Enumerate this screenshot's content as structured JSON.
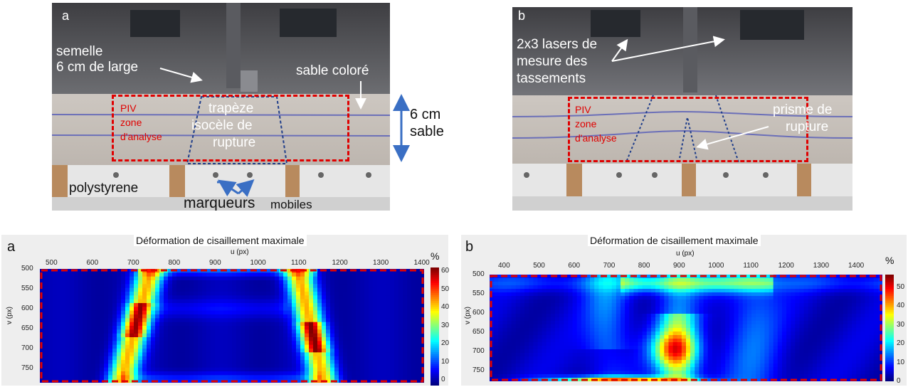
{
  "photo_a": {
    "letter": "a",
    "semelle_line1": "semelle",
    "semelle_line2": "6 cm de large",
    "sable_colore": "sable coloré",
    "piv_line1": "PIV",
    "piv_line2": "zone",
    "piv_line3": "d'analyse",
    "trapeze_line1": "trapèze",
    "trapeze_line2": "isocèle de",
    "trapeze_line3": "rupture",
    "cm_line1": "6 cm",
    "cm_line2": "sable",
    "polystyrene": "polystyrene",
    "marqueurs": "marqueurs",
    "mobiles": "mobiles"
  },
  "photo_b": {
    "letter": "b",
    "lasers_line1": "2x3 lasers de",
    "lasers_line2": "mesure des",
    "lasers_line3": "tassements",
    "piv_line1": "PIV",
    "piv_line2": "zone",
    "piv_line3": "d'analyse",
    "prisme_line1": "prisme de",
    "prisme_line2": "rupture"
  },
  "colors": {
    "dash_red": "#e00000",
    "arrow_blue": "#3a6fc4",
    "piv_text": "#e00000"
  },
  "chart_data": [
    {
      "type": "heatmap",
      "letter": "a",
      "title": "Déformation de cisaillement maximale",
      "xlabel": "u (px)",
      "ylabel": "v (px)",
      "x_ticks": [
        "500",
        "600",
        "700",
        "800",
        "900",
        "1000",
        "1100",
        "1200",
        "1300",
        "1400"
      ],
      "y_ticks": [
        "500",
        "550",
        "600",
        "650",
        "700",
        "750"
      ],
      "colorbar_unit": "%",
      "colorbar_ticks": [
        "0",
        "10",
        "20",
        "30",
        "40",
        "50",
        "60"
      ],
      "xlim": [
        460,
        1410
      ],
      "ylim": [
        500,
        780
      ],
      "zlim": [
        0,
        65
      ]
    },
    {
      "type": "heatmap",
      "letter": "b",
      "title": "Déformation de cisaillement maximale",
      "xlabel": "u (px)",
      "ylabel": "v (px)",
      "x_ticks": [
        "400",
        "500",
        "600",
        "700",
        "800",
        "900",
        "1000",
        "1100",
        "1200",
        "1300",
        "1400"
      ],
      "y_ticks": [
        "500",
        "550",
        "600",
        "650",
        "700",
        "750"
      ],
      "colorbar_unit": "%",
      "colorbar_ticks": [
        "0",
        "10",
        "20",
        "30",
        "40",
        "50"
      ],
      "xlim": [
        360,
        1480
      ],
      "ylim": [
        500,
        780
      ],
      "zlim": [
        0,
        57
      ]
    }
  ]
}
